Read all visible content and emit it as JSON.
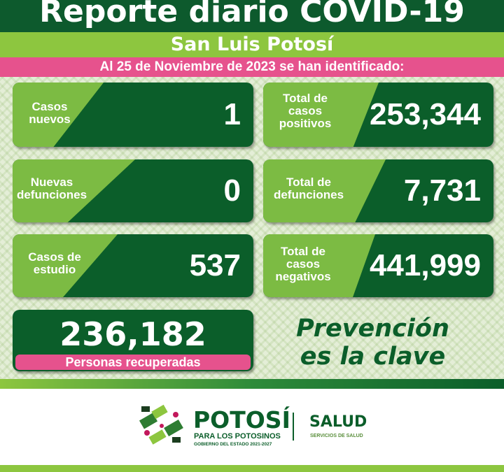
{
  "header": {
    "title": "Reporte diario COVID-19",
    "subtitle": "San Luis Potosí",
    "date_line": "Al 25 de Noviembre de 2023 se han identificado:"
  },
  "cards": [
    {
      "label": "Casos nuevos",
      "value": "1"
    },
    {
      "label": "Total de casos positivos",
      "value": "253,344"
    },
    {
      "label": "Nuevas defunciones",
      "value": "0"
    },
    {
      "label": "Total de defunciones",
      "value": "7,731"
    },
    {
      "label": "Casos de estudio",
      "value": "537"
    },
    {
      "label": "Total de casos negativos",
      "value": "441,999"
    }
  ],
  "recovered": {
    "value": "236,182",
    "label": "Personas recuperadas"
  },
  "slogan": {
    "line1": "Prevención",
    "line2": "es la clave"
  },
  "footer": {
    "brand": "POTOSÍ",
    "tagline": "PARA LOS POTOSINOS",
    "government": "GOBIERNO DEL ESTADO 2021-2027",
    "salud": "SALUD",
    "salud_sub": "SERVICIOS DE SALUD"
  },
  "colors": {
    "dark_green": "#0b5e2a",
    "light_green": "#8dc63f",
    "pink": "#e6528d"
  }
}
